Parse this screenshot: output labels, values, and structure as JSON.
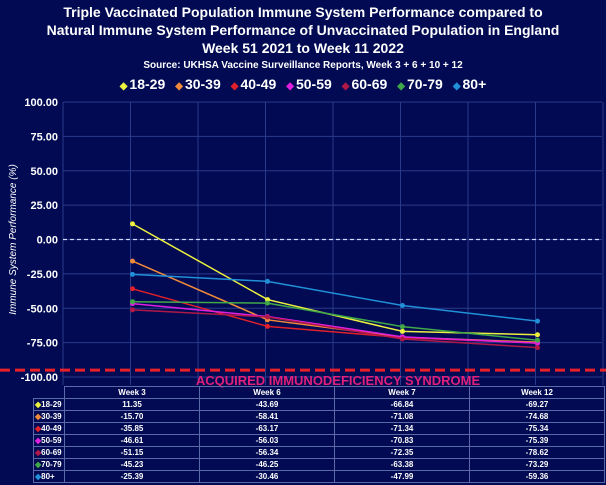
{
  "chart_data": {
    "type": "line",
    "title": [
      "Triple Vaccinated Population Immune System Performance compared to",
      "Natural Immune System Performance of Unvaccinated Population in England",
      "Week 51 2021 to Week 11 2022"
    ],
    "subtitle": "Source: UKHSA Vaccine Surveillance Reports, Week 3 + 6 + 10 + 12",
    "ylabel": "Immune System Performance (%)",
    "ylim": [
      -100,
      100
    ],
    "yticks": [
      "100.00",
      "75.00",
      "50.00",
      "25.00",
      "0.00",
      "-25.00",
      "-50.00",
      "-75.00",
      "-100.00"
    ],
    "categories": [
      "Week 3",
      "Week 6",
      "Week 7",
      "Week 12"
    ],
    "legend_position": "top",
    "threshold": {
      "value": -95,
      "label": "ACQUIRED IMMUNODEFICIENCY SYNDROME",
      "color": "#e8202a",
      "label_color": "#e0207a"
    },
    "series": [
      {
        "name": "18-29",
        "color": "#eef040",
        "values": [
          11.35,
          -43.69,
          -66.84,
          -69.27
        ],
        "labels": [
          "11.35",
          "-43.69",
          "-66.84",
          "-69.27"
        ]
      },
      {
        "name": "30-39",
        "color": "#f08a3a",
        "values": [
          -15.7,
          -58.41,
          -71.08,
          -74.68
        ],
        "labels": [
          "-15.70",
          "-58.41",
          "-71.08",
          "-74.68"
        ]
      },
      {
        "name": "40-49",
        "color": "#e0202a",
        "values": [
          -35.85,
          -63.17,
          -71.34,
          -75.34
        ],
        "labels": [
          "-35.85",
          "-63.17",
          "-71.34",
          "-75.34"
        ]
      },
      {
        "name": "50-59",
        "color": "#e020e0",
        "values": [
          -46.61,
          -56.03,
          -70.83,
          -75.39
        ],
        "labels": [
          "-46.61",
          "-56.03",
          "-70.83",
          "-75.39"
        ]
      },
      {
        "name": "60-69",
        "color": "#b01848",
        "values": [
          -51.15,
          -56.34,
          -72.35,
          -78.62
        ],
        "labels": [
          "-51.15",
          "-56.34",
          "-72.35",
          "-78.62"
        ]
      },
      {
        "name": "70-79",
        "color": "#40a848",
        "values": [
          -45.23,
          -46.25,
          -63.38,
          -73.29
        ],
        "labels": [
          "-45.23",
          "-46.25",
          "-63.38",
          "-73.29"
        ]
      },
      {
        "name": "80+",
        "color": "#2090d8",
        "values": [
          -25.39,
          -30.46,
          -47.99,
          -59.36
        ],
        "labels": [
          "-25.39",
          "-30.46",
          "-47.99",
          "-59.36"
        ]
      }
    ]
  }
}
